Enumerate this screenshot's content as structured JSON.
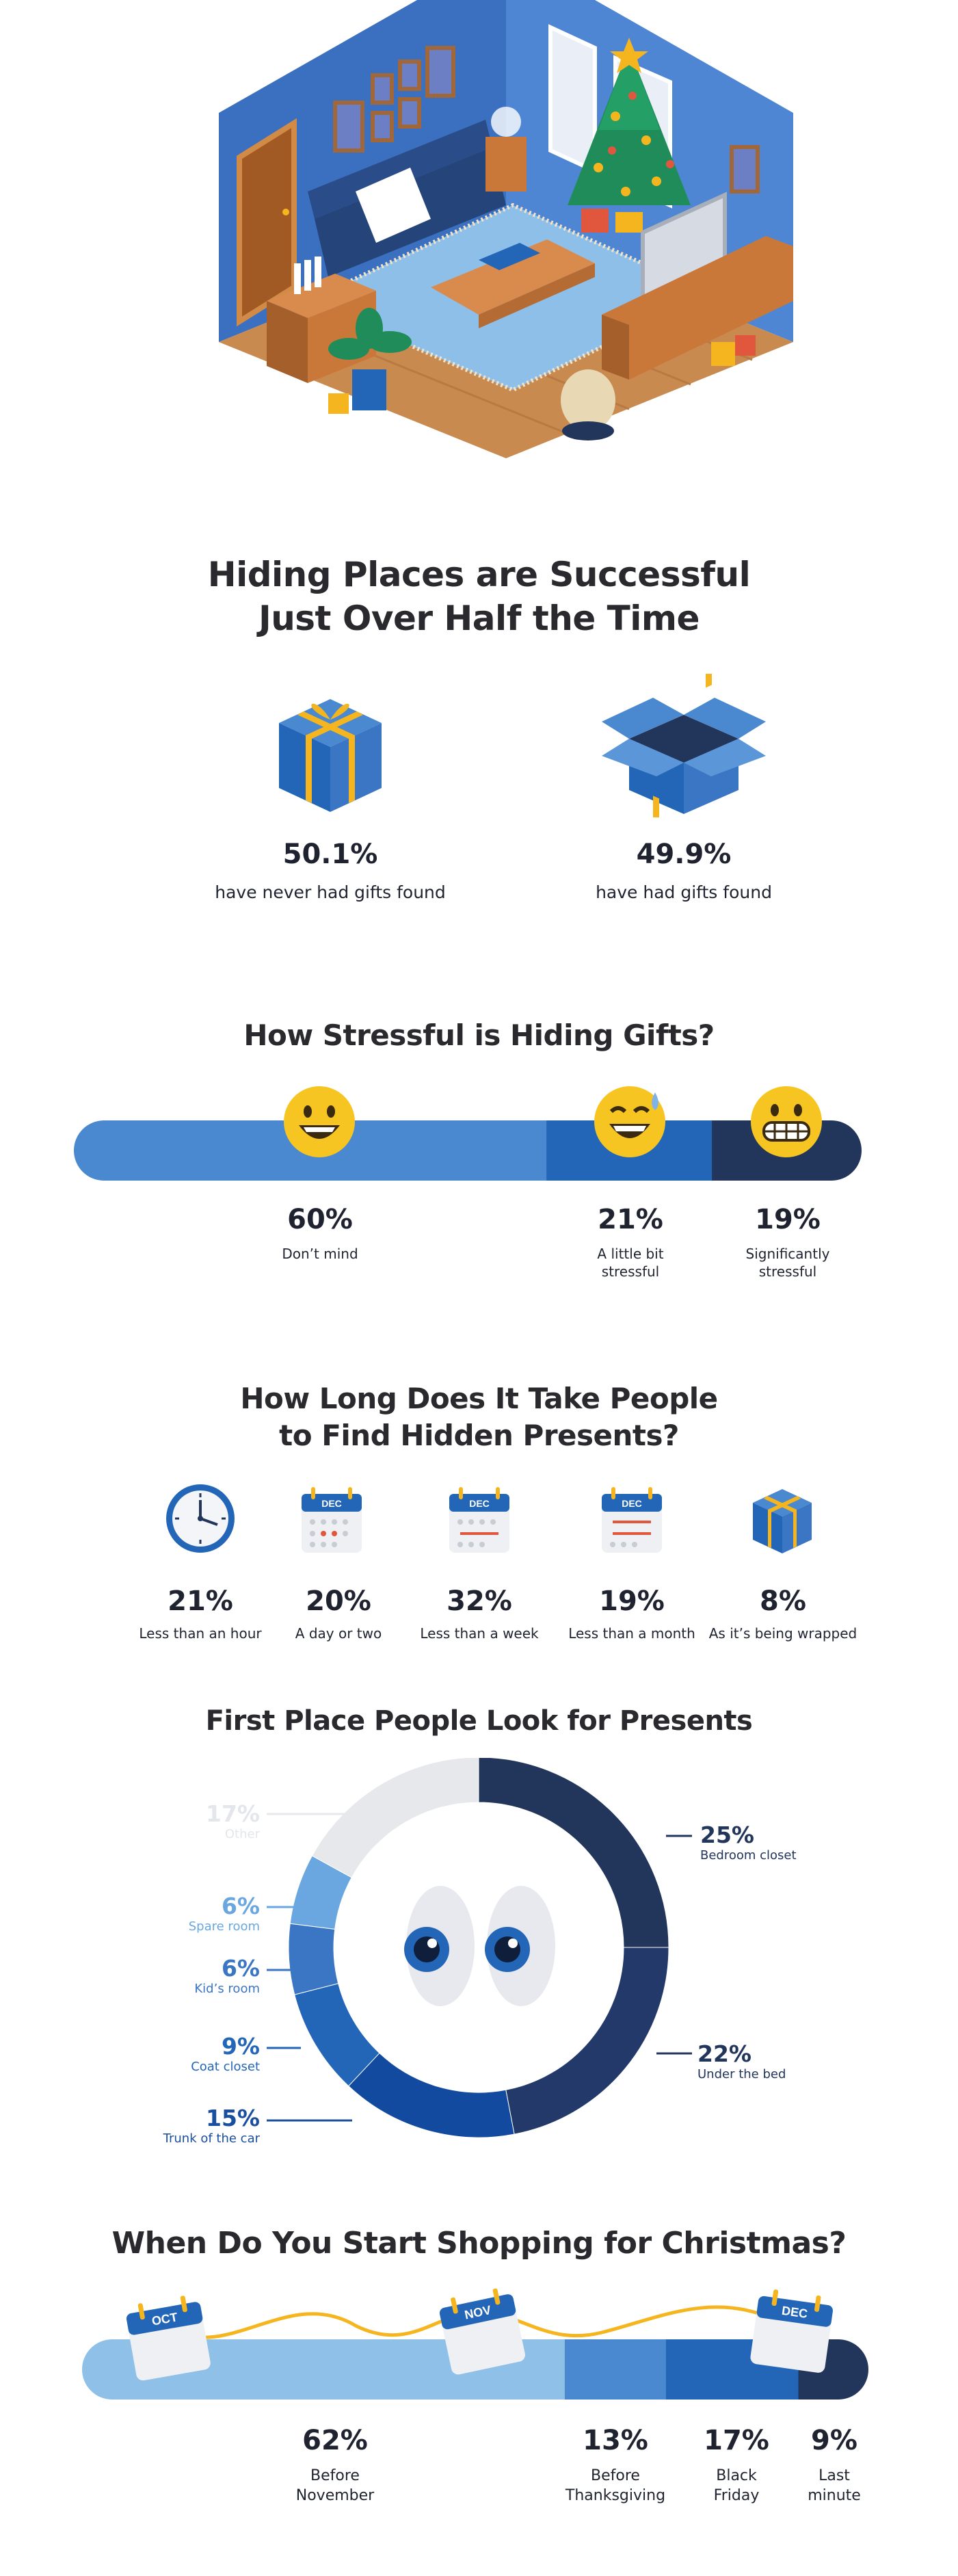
{
  "hero": {
    "alt": "Isometric living room with Christmas tree"
  },
  "colors": {
    "blue_light": "#4a88cf",
    "blue_mid": "#2366b8",
    "blue_dark": "#22355a",
    "blue_sky": "#8fc0e8",
    "gold": "#f5b51e",
    "grey_other": "#e6e8ec"
  },
  "section1": {
    "title_line1": "Hiding Places are Successful",
    "title_line2": "Just Over Half the Time",
    "items": [
      {
        "pct": "50.1%",
        "label": "have never had gifts found",
        "icon": "closed-gift-icon"
      },
      {
        "pct": "49.9%",
        "label": "have had gifts found",
        "icon": "open-gift-box-icon"
      }
    ]
  },
  "section2": {
    "title": "How Stressful is Hiding Gifts?",
    "chart_data": {
      "type": "bar",
      "title": "How Stressful is Hiding Gifts?",
      "categories": [
        "Don't mind",
        "A little bit stressful",
        "Significantly stressful"
      ],
      "values": [
        60,
        21,
        19
      ],
      "unit": "%"
    },
    "items": [
      {
        "pct": "60%",
        "line1": "Don’t mind",
        "line2": ""
      },
      {
        "pct": "21%",
        "line1": "A little bit",
        "line2": "stressful"
      },
      {
        "pct": "19%",
        "line1": "Significantly",
        "line2": "stressful"
      }
    ]
  },
  "section3": {
    "title_line1": "How Long Does It Take People",
    "title_line2": "to Find Hidden Presents?",
    "calendar_month": "DEC",
    "chart_data": {
      "type": "table",
      "categories": [
        "Less than an hour",
        "A day or two",
        "Less than a week",
        "Less than a month",
        "As it's being wrapped"
      ],
      "values": [
        21,
        20,
        32,
        19,
        8
      ],
      "unit": "%"
    },
    "items": [
      {
        "pct": "21%",
        "label": "Less than an hour"
      },
      {
        "pct": "20%",
        "label": "A day or two"
      },
      {
        "pct": "32%",
        "label": "Less than a week"
      },
      {
        "pct": "19%",
        "label": "Less than a month"
      },
      {
        "pct": "8%",
        "label": "As it’s being wrapped"
      }
    ]
  },
  "section4": {
    "title": "First Place People Look for Presents",
    "chart_data": {
      "type": "pie",
      "title": "First Place People Look for Presents",
      "categories": [
        "Bedroom closet",
        "Under the bed",
        "Trunk of the car",
        "Coat closet",
        "Kid's room",
        "Spare room",
        "Other"
      ],
      "values": [
        25,
        22,
        15,
        9,
        6,
        6,
        17
      ],
      "unit": "%"
    },
    "labels": [
      {
        "pct": "25%",
        "name": "Bedroom closet"
      },
      {
        "pct": "22%",
        "name": "Under the bed"
      },
      {
        "pct": "15%",
        "name": "Trunk of the car"
      },
      {
        "pct": "9%",
        "name": "Coat closet"
      },
      {
        "pct": "6%",
        "name": "Kid’s room"
      },
      {
        "pct": "6%",
        "name": "Spare room"
      },
      {
        "pct": "17%",
        "name": "Other"
      }
    ]
  },
  "section5": {
    "title": "When Do You Start Shopping for Christmas?",
    "months": [
      "OCT",
      "NOV",
      "DEC"
    ],
    "chart_data": {
      "type": "bar",
      "title": "When Do You Start Shopping for Christmas?",
      "categories": [
        "Before November",
        "Before Thanksgiving",
        "Black Friday",
        "Last minute"
      ],
      "values": [
        62,
        13,
        17,
        9
      ],
      "unit": "%"
    },
    "items": [
      {
        "pct": "62%",
        "line1": "Before",
        "line2": "November"
      },
      {
        "pct": "13%",
        "line1": "Before",
        "line2": "Thanksgiving"
      },
      {
        "pct": "17%",
        "line1": "Black",
        "line2": "Friday"
      },
      {
        "pct": "9%",
        "line1": "Last",
        "line2": "minute"
      }
    ]
  }
}
